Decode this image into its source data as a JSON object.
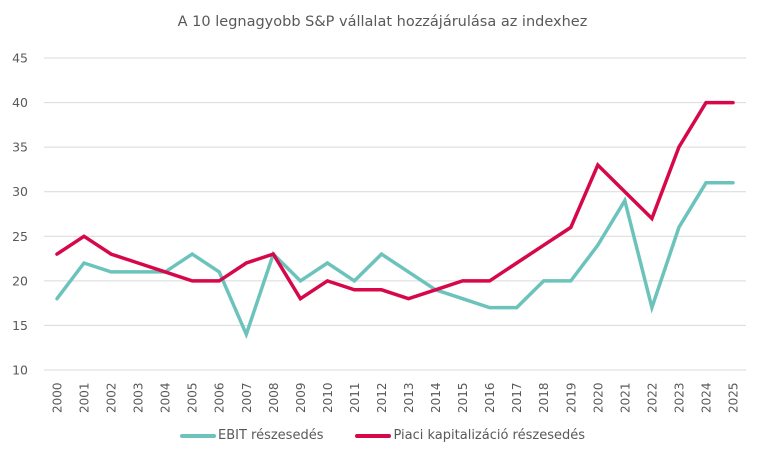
{
  "chart_data": {
    "type": "line",
    "title": "A 10 legnagyobb  S&P vállalat hozzájárulása az indexhez",
    "xlabel": "",
    "ylabel": "",
    "ylim": [
      10,
      45
    ],
    "yticks": [
      "10",
      "15",
      "20",
      "25",
      "30",
      "35",
      "40",
      "45"
    ],
    "ytick_values": [
      10,
      15,
      20,
      25,
      30,
      35,
      40,
      45
    ],
    "grid": true,
    "legend_position": "bottom",
    "categories": [
      "2000",
      "2001",
      "2002",
      "2003",
      "2004",
      "2005",
      "2006",
      "2007",
      "2008",
      "2009",
      "2010",
      "2011",
      "2012",
      "2013",
      "2014",
      "2015",
      "2016",
      "2017",
      "2018",
      "2019",
      "2020",
      "2021",
      "2022",
      "2023",
      "2024",
      "2025"
    ],
    "series": [
      {
        "name": "EBIT részesedés",
        "color": "#6cc3bb",
        "values": [
          18,
          22,
          21,
          21,
          21,
          23,
          21,
          14,
          23,
          20,
          22,
          20,
          23,
          21,
          19,
          18,
          17,
          17,
          20,
          20,
          24,
          29,
          17,
          26,
          31,
          31
        ]
      },
      {
        "name": "Piaci kapitalizáció részesedés",
        "color": "#d6084a",
        "values": [
          23,
          25,
          23,
          22,
          21,
          20,
          20,
          22,
          23,
          18,
          20,
          19,
          19,
          18,
          19,
          20,
          20,
          22,
          24,
          26,
          33,
          30,
          27,
          35,
          40,
          40
        ]
      }
    ]
  }
}
